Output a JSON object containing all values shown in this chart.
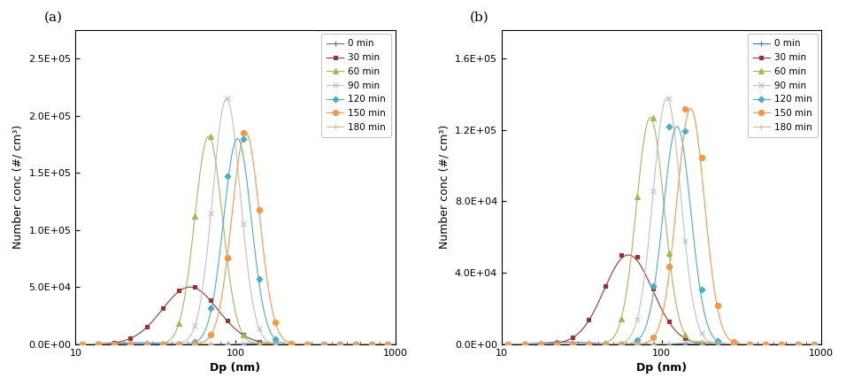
{
  "panel_a_label": "(a)",
  "panel_b_label": "(b)",
  "xlabel": "Dp (nm)",
  "ylabel": "Number conc (#/ cm³)",
  "xlim": [
    10,
    1000
  ],
  "panel_a_ylim": [
    0,
    275000.0
  ],
  "panel_b_ylim": [
    0,
    176000.0
  ],
  "panel_a_yticks": [
    0,
    50000.0,
    100000.0,
    150000.0,
    200000.0,
    250000.0
  ],
  "panel_b_yticks": [
    0,
    40000.0,
    80000.0,
    120000.0,
    160000.0
  ],
  "series": [
    {
      "label": "0 min",
      "color": "#4472C4",
      "marker": "+",
      "ms": 5,
      "lw": 0.8,
      "peak_a": 1200,
      "mode_a": 25,
      "sigma_a": 0.3,
      "peak_b": 1200,
      "mode_b": 25,
      "sigma_b": 0.3
    },
    {
      "label": "30 min",
      "color": "#943634",
      "marker": "s",
      "ms": 3.5,
      "lw": 0.8,
      "peak_a": 50000.0,
      "mode_a": 52,
      "sigma_a": 0.4,
      "peak_b": 50000.0,
      "mode_b": 62,
      "sigma_b": 0.35
    },
    {
      "label": "60 min",
      "color": "#9BBB59",
      "marker": "^",
      "ms": 4.5,
      "lw": 0.8,
      "peak_a": 182000.0,
      "mode_a": 68,
      "sigma_a": 0.2,
      "peak_b": 127000.0,
      "mode_b": 85,
      "sigma_b": 0.2
    },
    {
      "label": "90 min",
      "color": "#C0C0C0",
      "marker": "x",
      "ms": 5,
      "lw": 0.8,
      "peak_a": 215000.0,
      "mode_a": 88,
      "sigma_a": 0.2,
      "peak_b": 138000.0,
      "mode_b": 108,
      "sigma_b": 0.2
    },
    {
      "label": "120 min",
      "color": "#4BACC6",
      "marker": "D",
      "ms": 3.5,
      "lw": 0.8,
      "peak_a": 180000.0,
      "mode_a": 103,
      "sigma_a": 0.2,
      "peak_b": 122000.0,
      "mode_b": 125,
      "sigma_b": 0.2
    },
    {
      "label": "150 min",
      "color": "#F79646",
      "marker": "o",
      "ms": 4.5,
      "lw": 0.8,
      "peak_a": 185000.0,
      "mode_a": 116,
      "sigma_a": 0.2,
      "peak_b": 132000.0,
      "mode_b": 152,
      "sigma_b": 0.2
    },
    {
      "label": "180 min",
      "color": "#C8B89A",
      "marker": "+",
      "ms": 5,
      "lw": 0.8,
      "peak_a": 1500,
      "mode_a": 140,
      "sigma_a": 0.2,
      "peak_b": 1500,
      "mode_b": 170,
      "sigma_b": 0.2
    }
  ],
  "legend_fontsize": 7.5,
  "axis_fontsize": 9,
  "tick_fontsize": 8,
  "bg_color": "#FAFAFA"
}
